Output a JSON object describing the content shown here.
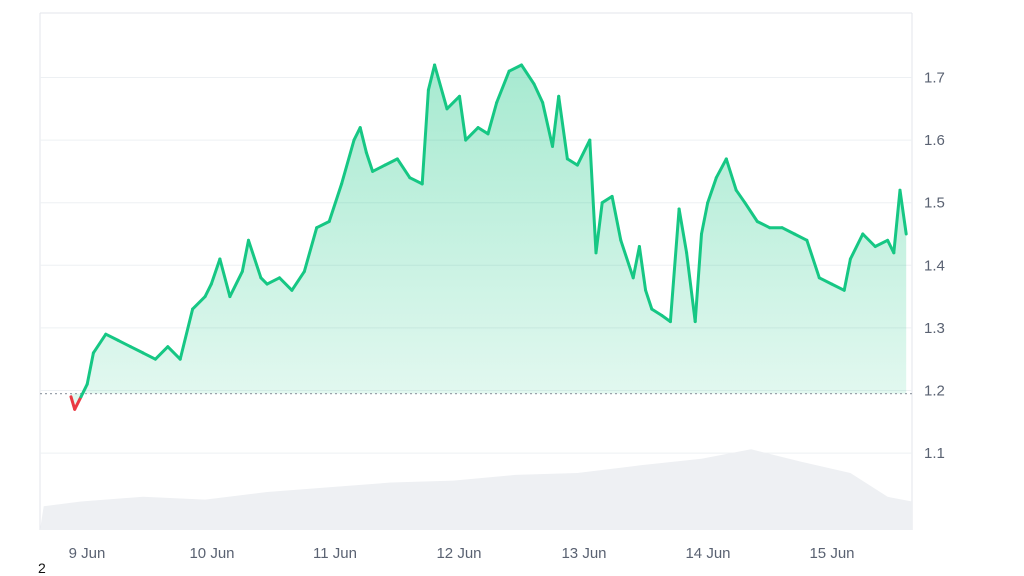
{
  "chart_data": {
    "type": "line",
    "title": "",
    "xlabel": "",
    "ylabel": "",
    "x_ticks": [
      "9 Jun",
      "10 Jun",
      "11 Jun",
      "12 Jun",
      "13 Jun",
      "14 Jun",
      "15 Jun"
    ],
    "y_ticks": [
      1.1,
      1.2,
      1.3,
      1.4,
      1.5,
      1.6,
      1.7
    ],
    "ylim": [
      1.0,
      1.8
    ],
    "baseline": 1.195,
    "grid": "horizontal",
    "colors": {
      "up": "#16c784",
      "down": "#ea3943",
      "volume": "#eef0f3"
    },
    "series": [
      {
        "values_day": [
          8.92,
          8.95,
          9.0,
          9.05,
          9.1,
          9.2,
          9.3,
          9.4,
          9.5,
          9.6,
          9.7,
          9.8,
          9.9,
          10.0,
          10.05,
          10.12,
          10.2,
          10.3,
          10.35,
          10.45,
          10.5,
          10.6,
          10.7,
          10.8,
          10.9,
          11.0,
          11.1,
          11.2,
          11.25,
          11.3,
          11.35,
          11.45,
          11.55,
          11.65,
          11.75,
          11.8,
          11.85,
          11.95,
          12.05,
          12.1,
          12.2,
          12.28,
          12.35,
          12.45,
          12.55,
          12.65,
          12.72,
          12.8,
          12.85,
          12.92,
          13.0,
          13.1,
          13.15,
          13.2,
          13.28,
          13.35,
          13.45,
          13.5,
          13.55,
          13.6,
          13.68,
          13.75,
          13.82,
          13.88,
          13.95,
          14.0,
          14.05,
          14.12,
          14.2,
          14.28,
          14.35,
          14.45,
          14.55,
          14.65,
          14.75,
          14.85,
          14.95,
          15.05,
          15.15,
          15.2,
          15.3,
          15.4,
          15.5,
          15.55,
          15.6,
          15.65
        ],
        "values": [
          1.19,
          1.17,
          1.19,
          1.21,
          1.26,
          1.29,
          1.28,
          1.27,
          1.26,
          1.25,
          1.27,
          1.25,
          1.33,
          1.35,
          1.37,
          1.41,
          1.35,
          1.39,
          1.44,
          1.38,
          1.37,
          1.38,
          1.36,
          1.39,
          1.46,
          1.47,
          1.53,
          1.6,
          1.62,
          1.58,
          1.55,
          1.56,
          1.57,
          1.54,
          1.53,
          1.68,
          1.72,
          1.65,
          1.67,
          1.6,
          1.62,
          1.61,
          1.66,
          1.71,
          1.72,
          1.69,
          1.66,
          1.59,
          1.67,
          1.57,
          1.56,
          1.6,
          1.42,
          1.5,
          1.51,
          1.44,
          1.38,
          1.43,
          1.36,
          1.33,
          1.32,
          1.31,
          1.49,
          1.42,
          1.31,
          1.45,
          1.5,
          1.54,
          1.57,
          1.52,
          1.5,
          1.47,
          1.46,
          1.46,
          1.45,
          1.44,
          1.38,
          1.37,
          1.36,
          1.41,
          1.45,
          1.43,
          1.44,
          1.42,
          1.52,
          1.45
        ]
      }
    ],
    "volume": {
      "x_day": [
        8.7,
        9.0,
        9.5,
        10.0,
        10.5,
        11.0,
        11.5,
        12.0,
        12.5,
        13.0,
        13.5,
        14.0,
        14.4,
        14.8,
        15.2,
        15.5,
        15.7
      ],
      "values": [
        0.025,
        0.03,
        0.035,
        0.032,
        0.04,
        0.045,
        0.05,
        0.052,
        0.058,
        0.06,
        0.068,
        0.075,
        0.085,
        0.072,
        0.06,
        0.035,
        0.03
      ]
    }
  },
  "footer": {
    "corner_label": "2"
  }
}
